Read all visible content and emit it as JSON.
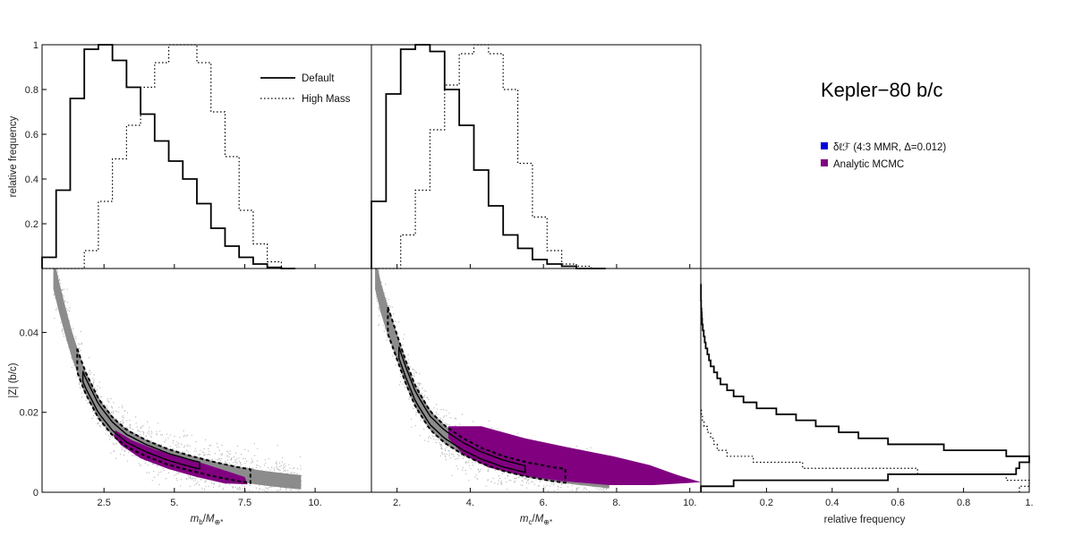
{
  "title": "Kepler−80 b/c",
  "colors": {
    "frame": "#000000",
    "scatter": "#7a7a7a",
    "core": "#8c8c8c",
    "analytic": "#800080",
    "n_body": "#0000dd"
  },
  "chart_data": [
    {
      "panel": "top-left",
      "type": "histogram",
      "xlim": [
        0.3,
        12.0
      ],
      "ylim": [
        0,
        1.0
      ],
      "ylabel": "relative frequency",
      "yticks": [
        "0.2",
        "0.4",
        "0.6",
        "0.8",
        "1"
      ],
      "yticks_values": [
        0.2,
        0.4,
        0.6,
        0.8,
        1.0
      ],
      "legend": {
        "position": "top-right",
        "entries": [
          "Default",
          "High Mass"
        ]
      },
      "bin_edges": [
        0.3,
        0.8,
        1.3,
        1.8,
        2.3,
        2.8,
        3.3,
        3.8,
        4.3,
        4.8,
        5.3,
        5.8,
        6.3,
        6.8,
        7.3,
        7.8,
        8.3,
        8.8,
        9.3
      ],
      "series": [
        {
          "name": "Default",
          "style": "solid",
          "values": [
            0.05,
            0.35,
            0.76,
            0.98,
            1.0,
            0.93,
            0.81,
            0.69,
            0.57,
            0.48,
            0.4,
            0.29,
            0.18,
            0.1,
            0.05,
            0.02,
            0.005,
            0.0
          ]
        },
        {
          "name": "High Mass",
          "style": "dotted",
          "values": [
            0,
            0,
            0,
            0.08,
            0.3,
            0.49,
            0.64,
            0.81,
            0.92,
            1.0,
            1.0,
            0.92,
            0.7,
            0.5,
            0.26,
            0.11,
            0.03,
            0.0
          ]
        }
      ]
    },
    {
      "panel": "top-middle",
      "type": "histogram",
      "xlim": [
        1.3,
        10.3
      ],
      "ylim": [
        0,
        1.0
      ],
      "bin_edges": [
        1.3,
        1.7,
        2.1,
        2.5,
        2.9,
        3.3,
        3.7,
        4.1,
        4.5,
        4.9,
        5.3,
        5.7,
        6.1,
        6.5,
        6.9,
        7.3,
        7.7
      ],
      "series": [
        {
          "name": "Default",
          "style": "solid",
          "values": [
            0.3,
            0.78,
            0.98,
            1.0,
            0.97,
            0.8,
            0.64,
            0.44,
            0.28,
            0.15,
            0.09,
            0.04,
            0.02,
            0.01,
            0.0,
            0.0
          ]
        },
        {
          "name": "High Mass",
          "style": "dotted",
          "values": [
            0,
            0,
            0.15,
            0.35,
            0.62,
            0.82,
            0.96,
            1.0,
            0.96,
            0.8,
            0.47,
            0.23,
            0.08,
            0.02,
            0.01,
            0.0
          ]
        }
      ]
    },
    {
      "panel": "bottom-left",
      "type": "scatter",
      "xlim": [
        0.3,
        12.0
      ],
      "ylim": [
        0,
        0.056
      ],
      "xlabel": "m_b/M_⊕*",
      "ylabel": "|Z| (b/c)",
      "xticks": [
        "2.5",
        "5.",
        "7.5",
        "10."
      ],
      "xticks_values": [
        2.5,
        5.0,
        7.5,
        10.0
      ],
      "yticks": [
        "0",
        "0.02",
        "0.04"
      ],
      "yticks_values": [
        0,
        0.02,
        0.04
      ],
      "ridge": {
        "x": [
          0.7,
          1.0,
          1.4,
          1.8,
          2.3,
          2.8,
          3.3,
          4.0,
          4.8,
          5.6,
          6.4,
          7.2,
          8.0,
          8.8,
          9.5
        ],
        "y": [
          0.055,
          0.046,
          0.036,
          0.028,
          0.021,
          0.0165,
          0.0135,
          0.011,
          0.0088,
          0.0072,
          0.0058,
          0.0046,
          0.0037,
          0.003,
          0.0025
        ]
      },
      "scatter_halfwidth": 0.0055,
      "core_halfwidth": 0.0028,
      "contour_outer_halfwidth": 0.0026,
      "contour_inner_halfwidth": 0.0012,
      "contour_xrange": [
        1.55,
        7.7
      ],
      "contour_inner_xrange": [
        1.75,
        5.9
      ],
      "analytic_region": [
        [
          2.9,
          0.0155
        ],
        [
          3.5,
          0.013
        ],
        [
          4.4,
          0.0105
        ],
        [
          5.3,
          0.0088
        ],
        [
          6.2,
          0.0068
        ],
        [
          7.0,
          0.005
        ],
        [
          7.5,
          0.0038
        ],
        [
          7.6,
          0.002
        ],
        [
          6.8,
          0.0022
        ],
        [
          5.8,
          0.0038
        ],
        [
          4.8,
          0.0058
        ],
        [
          3.8,
          0.0085
        ],
        [
          3.1,
          0.0118
        ],
        [
          2.85,
          0.014
        ]
      ]
    },
    {
      "panel": "bottom-middle",
      "type": "scatter",
      "xlim": [
        1.3,
        10.3
      ],
      "ylim": [
        0,
        0.056
      ],
      "xlabel": "m_c/M_⊕*",
      "xticks": [
        "2.",
        "4.",
        "6.",
        "8.",
        "10."
      ],
      "xticks_values": [
        2,
        4,
        6,
        8,
        10
      ],
      "ridge": {
        "x": [
          1.4,
          1.6,
          1.9,
          2.2,
          2.5,
          2.9,
          3.3,
          3.8,
          4.3,
          4.9,
          5.5,
          6.2,
          7.0,
          7.8
        ],
        "y": [
          0.055,
          0.047,
          0.039,
          0.031,
          0.024,
          0.018,
          0.0145,
          0.0115,
          0.0092,
          0.0072,
          0.0058,
          0.0046,
          0.0036,
          0.0028
        ]
      },
      "scatter_halfwidth": 0.0055,
      "core_halfwidth": 0.0028,
      "contour_outer_halfwidth": 0.0026,
      "contour_inner_halfwidth": 0.0012,
      "contour_xrange": [
        1.75,
        6.6
      ],
      "contour_inner_xrange": [
        2.05,
        5.5
      ],
      "analytic_region": [
        [
          3.4,
          0.0165
        ],
        [
          4.3,
          0.0165
        ],
        [
          5.5,
          0.0135
        ],
        [
          6.8,
          0.011
        ],
        [
          7.9,
          0.009
        ],
        [
          8.9,
          0.0068
        ],
        [
          9.6,
          0.0045
        ],
        [
          10.3,
          0.0025
        ],
        [
          9.0,
          0.0018
        ],
        [
          7.8,
          0.0018
        ],
        [
          6.5,
          0.0028
        ],
        [
          5.4,
          0.0042
        ],
        [
          4.5,
          0.0062
        ],
        [
          3.8,
          0.0095
        ],
        [
          3.4,
          0.0135
        ]
      ]
    },
    {
      "panel": "bottom-right",
      "type": "histogram-horizontal",
      "xlim": [
        0,
        1.0
      ],
      "ylim": [
        0,
        0.056
      ],
      "xlabel": "relative frequency",
      "xticks": [
        "0.2",
        "0.4",
        "0.6",
        "0.8",
        "1."
      ],
      "xticks_values": [
        0.2,
        0.4,
        0.6,
        0.8,
        1.0
      ],
      "series": [
        {
          "name": "Default",
          "style": "solid",
          "steps": [
            [
              0.0,
              0.0005
            ],
            [
              0.0015,
              0.1
            ],
            [
              0.003,
              0.57
            ],
            [
              0.0045,
              0.96
            ],
            [
              0.006,
              0.97
            ],
            [
              0.0075,
              1.0
            ],
            [
              0.009,
              0.93
            ],
            [
              0.0105,
              0.74
            ],
            [
              0.012,
              0.57
            ],
            [
              0.0135,
              0.48
            ],
            [
              0.015,
              0.42
            ],
            [
              0.0165,
              0.35
            ],
            [
              0.018,
              0.29
            ],
            [
              0.0195,
              0.23
            ],
            [
              0.021,
              0.17
            ],
            [
              0.0225,
              0.13
            ],
            [
              0.024,
              0.1
            ],
            [
              0.0255,
              0.08
            ],
            [
              0.027,
              0.06
            ],
            [
              0.0285,
              0.05
            ],
            [
              0.03,
              0.04
            ],
            [
              0.0315,
              0.03
            ],
            [
              0.033,
              0.025
            ],
            [
              0.0345,
              0.02
            ],
            [
              0.036,
              0.015
            ],
            [
              0.0375,
              0.012
            ],
            [
              0.039,
              0.009
            ],
            [
              0.0405,
              0.006
            ],
            [
              0.042,
              0.004
            ],
            [
              0.0435,
              0.003
            ],
            [
              0.045,
              0.002
            ],
            [
              0.046,
              0.001
            ],
            [
              0.048,
              0.0005
            ],
            [
              0.052,
              0.0
            ]
          ]
        },
        {
          "name": "High Mass",
          "style": "dotted",
          "steps": [
            [
              0.0,
              0.97
            ],
            [
              0.0015,
              1.0
            ],
            [
              0.003,
              0.93
            ],
            [
              0.0045,
              0.66
            ],
            [
              0.006,
              0.31
            ],
            [
              0.0075,
              0.16
            ],
            [
              0.009,
              0.08
            ],
            [
              0.0105,
              0.05
            ],
            [
              0.012,
              0.04
            ],
            [
              0.0135,
              0.03
            ],
            [
              0.015,
              0.02
            ],
            [
              0.0165,
              0.01
            ],
            [
              0.018,
              0.005
            ],
            [
              0.0195,
              0.002
            ],
            [
              0.021,
              0.0
            ]
          ]
        }
      ]
    }
  ],
  "legend_right": {
    "entries": [
      {
        "label": "δℓℱ (4:3 MMR, Δ=0.012)",
        "color": "#0000dd"
      },
      {
        "label": "Analytic MCMC",
        "color": "#800080"
      }
    ]
  }
}
